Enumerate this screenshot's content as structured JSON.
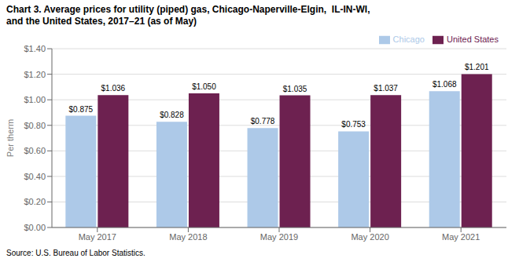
{
  "chart_data": {
    "type": "bar",
    "title": "Chart 3. Average prices for utility (piped) gas, Chicago-Naperville-Elgin,  IL-IN-WI,\nand the United States, 2017–21 (as of May)",
    "ylabel": "Per therm",
    "annotations": [
      "Source: U.S. Bureau of Labor Statistics."
    ],
    "categories": [
      "May 2017",
      "May 2018",
      "May 2019",
      "May 2020",
      "May 2021"
    ],
    "series": [
      {
        "name": "Chicago",
        "color": "#adc9e8",
        "values": [
          0.875,
          0.828,
          0.778,
          0.753,
          1.068
        ],
        "value_labels": [
          "$0.875",
          "$0.828",
          "$0.778",
          "$0.753",
          "$1.068"
        ]
      },
      {
        "name": "United States",
        "color": "#6d2150",
        "values": [
          1.036,
          1.05,
          1.035,
          1.037,
          1.201
        ],
        "value_labels": [
          "$1.036",
          "$1.050",
          "$1.035",
          "$1.037",
          "$1.201"
        ]
      }
    ],
    "ylim": [
      0,
      1.4
    ],
    "yticks": [
      {
        "value": 0.0,
        "label": "$0.00"
      },
      {
        "value": 0.2,
        "label": "$0.20"
      },
      {
        "value": 0.4,
        "label": "$0.40"
      },
      {
        "value": 0.6,
        "label": "$0.60"
      },
      {
        "value": 0.8,
        "label": "$0.80"
      },
      {
        "value": 1.0,
        "label": "$1.00"
      },
      {
        "value": 1.2,
        "label": "$1.20"
      },
      {
        "value": 1.4,
        "label": "$1.40"
      }
    ],
    "grid": true,
    "legend": "upper right",
    "data_labels": true
  }
}
